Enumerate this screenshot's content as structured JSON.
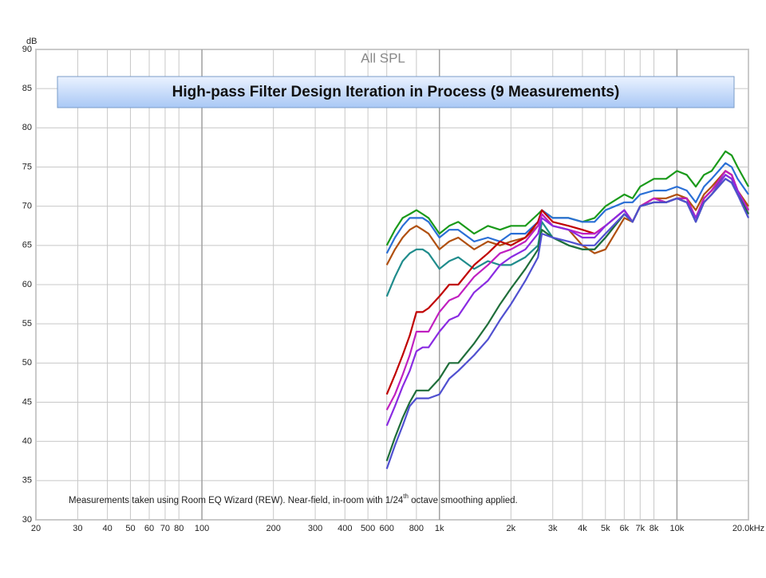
{
  "chart_data": {
    "type": "line",
    "title": "High-pass Filter Design Iteration in Process (9 Measurements)",
    "subtitle": "All SPL",
    "y_label": "dB",
    "annotation": [
      "Measurements taken using Room EQ Wizard (REW). Near-field, in-room with 1/24",
      "th",
      " octave smoothing applied."
    ],
    "log_x": true,
    "grid": true,
    "xlim": [
      20,
      20000
    ],
    "ylim": [
      30,
      90
    ],
    "yticks": [
      30,
      35,
      40,
      45,
      50,
      55,
      60,
      65,
      70,
      75,
      80,
      85,
      90
    ],
    "xticks": [
      20,
      30,
      40,
      50,
      60,
      70,
      80,
      100,
      200,
      300,
      400,
      500,
      600,
      800,
      {
        "value": 1000,
        "label": "1k"
      },
      {
        "value": 2000,
        "label": "2k"
      },
      {
        "value": 3000,
        "label": "3k"
      },
      {
        "value": 4000,
        "label": "4k"
      },
      {
        "value": 5000,
        "label": "5k"
      },
      {
        "value": 6000,
        "label": "6k"
      },
      {
        "value": 7000,
        "label": "7k"
      },
      {
        "value": 8000,
        "label": "8k"
      },
      {
        "value": 10000,
        "label": "10k"
      },
      {
        "value": 20000,
        "label": "20.0kHz"
      }
    ],
    "x": [
      600,
      650,
      700,
      750,
      800,
      850,
      900,
      1000,
      1100,
      1200,
      1400,
      1600,
      1800,
      2000,
      2300,
      2600,
      2700,
      3000,
      3500,
      4000,
      4500,
      5000,
      6000,
      6500,
      7000,
      8000,
      9000,
      10000,
      11000,
      12000,
      13000,
      14000,
      16000,
      17000,
      18000,
      20000
    ],
    "series": [
      {
        "color": "#1a9a1a",
        "values": [
          65,
          67,
          68.5,
          69,
          69.5,
          69,
          68.5,
          66.5,
          67.5,
          68,
          66.5,
          67.5,
          67,
          67.5,
          67.5,
          69,
          69.5,
          68.5,
          68.5,
          68,
          68.5,
          70,
          71.5,
          71,
          72.5,
          73.5,
          73.5,
          74.5,
          74,
          72.5,
          74,
          74.5,
          77,
          76.5,
          75,
          72.5
        ]
      },
      {
        "color": "#2a6fd6",
        "values": [
          64,
          66,
          67.5,
          68.5,
          68.5,
          68.5,
          68,
          66,
          67,
          67,
          65.5,
          66,
          65.5,
          66.5,
          66.5,
          68,
          69.5,
          68.5,
          68.5,
          68,
          68,
          69.5,
          70.5,
          70.5,
          71.5,
          72,
          72,
          72.5,
          72,
          70.5,
          72.5,
          73.5,
          75.5,
          75,
          73.5,
          71.5
        ]
      },
      {
        "color": "#b05010",
        "values": [
          62.5,
          64.5,
          66,
          67,
          67.5,
          67,
          66.5,
          64.5,
          65.5,
          66,
          64.5,
          65.5,
          65,
          65.5,
          66,
          67.5,
          69,
          67.5,
          67,
          65,
          64,
          64.5,
          68.5,
          68,
          70,
          71,
          71,
          71.5,
          71,
          69.5,
          71.5,
          72.5,
          74.5,
          74,
          72,
          70
        ]
      },
      {
        "color": "#1f8c8c",
        "values": [
          58.5,
          61,
          63,
          64,
          64.5,
          64.5,
          64,
          62,
          63,
          63.5,
          62,
          63,
          62.5,
          62.5,
          63.5,
          65,
          68,
          66,
          65,
          64.5,
          64.5,
          66,
          69,
          68,
          70,
          70.5,
          70.5,
          71,
          71,
          68.5,
          71,
          72,
          74,
          73.5,
          71.5,
          69.5
        ]
      },
      {
        "color": "#c00000",
        "values": [
          46,
          48.5,
          51,
          53.5,
          56.5,
          56.5,
          57,
          58.5,
          60,
          60,
          62.5,
          64,
          65.5,
          65,
          66,
          68,
          69.5,
          68,
          67.5,
          67,
          66.5,
          67.5,
          69.5,
          68,
          70,
          71,
          70.5,
          71,
          71,
          68.5,
          71,
          72,
          74.5,
          74,
          72,
          69.5
        ]
      },
      {
        "color": "#c020c0",
        "values": [
          44,
          46,
          48.5,
          51,
          54,
          54,
          54,
          56.5,
          58,
          58.5,
          61,
          62.5,
          64,
          64.5,
          65.5,
          67.5,
          69,
          67.5,
          67,
          66.5,
          66.5,
          67.5,
          69.5,
          68,
          70,
          71,
          70.5,
          71,
          71,
          68.5,
          71,
          72,
          74.5,
          74,
          72,
          69.5
        ]
      },
      {
        "color": "#8a2be2",
        "values": [
          42,
          44.5,
          47,
          49,
          51.5,
          52,
          52,
          54,
          55.5,
          56,
          59,
          60.5,
          62.5,
          63.5,
          64.5,
          66.5,
          68.5,
          67.5,
          67,
          66,
          66,
          67.5,
          69.5,
          68,
          70,
          70.5,
          70.5,
          71,
          70.5,
          68.5,
          70.5,
          71.5,
          74,
          73.5,
          72,
          69
        ]
      },
      {
        "color": "#1f6e3a",
        "values": [
          37.5,
          40.5,
          43,
          45,
          46.5,
          46.5,
          46.5,
          48,
          50,
          50,
          52.5,
          55,
          57.5,
          59.5,
          62,
          64.5,
          67,
          66,
          65,
          64.5,
          64.5,
          66,
          69,
          68,
          70,
          70.5,
          70.5,
          71,
          70.5,
          68,
          70.5,
          71.5,
          73.5,
          73,
          71.5,
          69
        ]
      },
      {
        "color": "#5050d0",
        "values": [
          36.5,
          39.5,
          42,
          44.5,
          45.5,
          45.5,
          45.5,
          46,
          48,
          49,
          51,
          53,
          55.5,
          57.5,
          60.5,
          63.5,
          66.5,
          66,
          65.5,
          65,
          65,
          66.5,
          69,
          68,
          70,
          70.5,
          70.5,
          71,
          70.5,
          68,
          70.5,
          71.5,
          73.5,
          73,
          71.5,
          68.5
        ]
      }
    ]
  }
}
